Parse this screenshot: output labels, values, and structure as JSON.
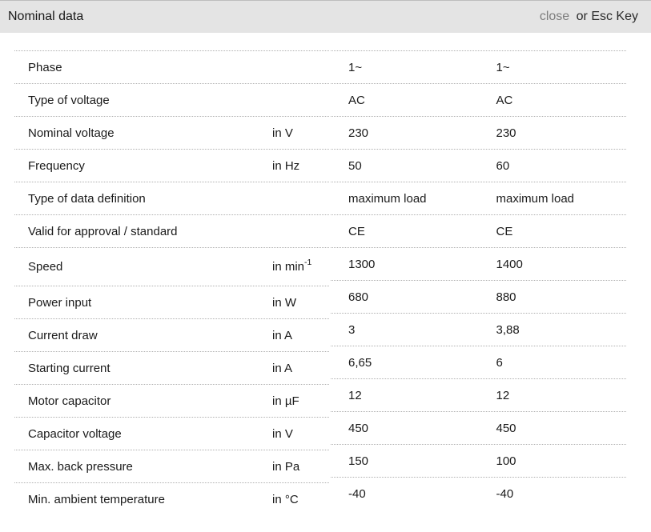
{
  "header": {
    "title": "Nominal data",
    "close_label": "close",
    "esc_hint": "or Esc Key"
  },
  "colors": {
    "header_bg": "#e4e4e4",
    "close_link": "#7d7d7d",
    "text": "#1a1a1a",
    "row_divider": "#b0b0b0"
  },
  "table": {
    "rows": [
      {
        "label": "Phase",
        "unit": "",
        "unit_sup": "",
        "values": [
          "1~",
          "1~"
        ]
      },
      {
        "label": "Type of voltage",
        "unit": "",
        "unit_sup": "",
        "values": [
          "AC",
          "AC"
        ]
      },
      {
        "label": "Nominal voltage",
        "unit": "in V",
        "unit_sup": "",
        "values": [
          "230",
          "230"
        ]
      },
      {
        "label": "Frequency",
        "unit": "in Hz",
        "unit_sup": "",
        "values": [
          "50",
          "60"
        ]
      },
      {
        "label": "Type of data definition",
        "unit": "",
        "unit_sup": "",
        "values": [
          "maximum load",
          "maximum load"
        ]
      },
      {
        "label": "Valid for approval / standard",
        "unit": "",
        "unit_sup": "",
        "values": [
          "CE",
          "CE"
        ]
      },
      {
        "label": "Speed",
        "unit": "in min",
        "unit_sup": "-1",
        "values": [
          "1300",
          "1400"
        ]
      },
      {
        "label": "Power input",
        "unit": "in W",
        "unit_sup": "",
        "values": [
          "680",
          "880"
        ]
      },
      {
        "label": "Current draw",
        "unit": "in A",
        "unit_sup": "",
        "values": [
          "3",
          "3,88"
        ]
      },
      {
        "label": "Starting current",
        "unit": "in A",
        "unit_sup": "",
        "values": [
          "6,65",
          "6"
        ]
      },
      {
        "label": "Motor capacitor",
        "unit": "in µF",
        "unit_sup": "",
        "values": [
          "12",
          "12"
        ]
      },
      {
        "label": "Capacitor voltage",
        "unit": "in V",
        "unit_sup": "",
        "values": [
          "450",
          "450"
        ]
      },
      {
        "label": "Max. back pressure",
        "unit": "in Pa",
        "unit_sup": "",
        "values": [
          "150",
          "100"
        ]
      },
      {
        "label": "Min. ambient temperature",
        "unit": "in °C",
        "unit_sup": "",
        "values": [
          "-40",
          "-40"
        ]
      }
    ]
  }
}
